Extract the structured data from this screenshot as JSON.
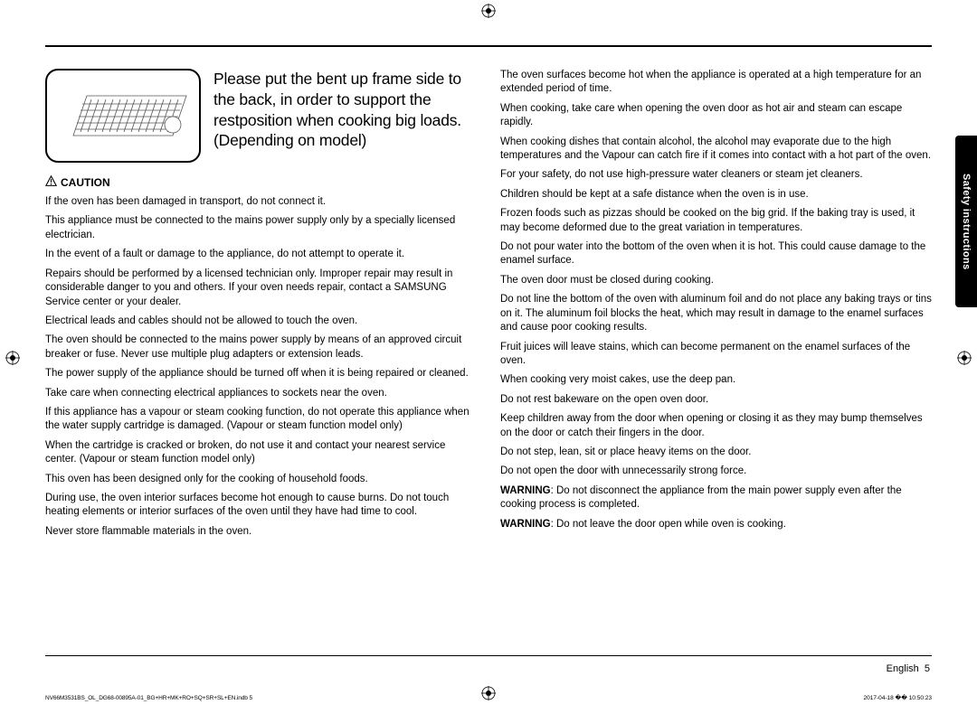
{
  "intro": "Please put the bent up frame side to the back, in order to support the restposition when cooking big loads. (Depending on model)",
  "caution_label": "CAUTION",
  "side_tab": "Safety instructions",
  "left_paras": [
    "If the oven has been damaged in transport, do not connect it.",
    "This appliance must be connected to the mains power supply only by a specially licensed electrician.",
    "In the event of a fault or damage to the appliance, do not attempt to operate it.",
    "Repairs should be performed by a licensed technician only. Improper repair may result in considerable danger to you and others. If your oven needs repair, contact a SAMSUNG Service center or your dealer.",
    "Electrical leads and cables should not be allowed to touch the oven.",
    "The oven should be connected to the mains power supply by means of an approved circuit breaker or fuse. Never use multiple plug adapters or extension leads.",
    "The power supply of the appliance should be turned off when it is being repaired or cleaned.",
    "Take care when connecting electrical appliances to sockets near the oven.",
    "If this appliance has a vapour or steam cooking function, do not operate this appliance when the water supply cartridge is damaged. (Vapour or steam function model only)",
    "When the cartridge is cracked or broken, do not use it and contact your nearest service center. (Vapour or steam function model only)",
    "This oven has been designed only for the cooking of household foods.",
    "During use, the oven interior surfaces become hot enough to cause burns. Do not touch heating elements or interior surfaces of the oven until they have had time to cool.",
    "Never store flammable materials in the oven."
  ],
  "right_paras": [
    "The oven surfaces become hot when the appliance is operated at a high temperature for an extended period of time.",
    "When cooking, take care when opening the oven door as hot air and steam can escape rapidly.",
    "When cooking dishes that contain alcohol, the alcohol may evaporate due to the high temperatures and the Vapour can catch fire if it comes into contact with a hot part of the oven.",
    "For your safety, do not use high-pressure water cleaners or steam jet cleaners.",
    "Children should be kept at a safe distance when the oven is in use.",
    "Frozen foods such as pizzas should be cooked on the big grid. If the baking tray is used, it may become deformed due to the great variation in temperatures.",
    "Do not pour water into the bottom of the oven when it is hot. This could cause damage to the enamel surface.",
    "The oven door must be closed during cooking.",
    "Do not line the bottom of the oven with aluminum foil and do not place any baking trays or tins on it. The aluminum foil blocks the heat, which may result in damage to the enamel surfaces and cause poor cooking results.",
    "Fruit juices will leave stains, which can become permanent on the enamel surfaces of the oven.",
    "When cooking very moist cakes, use the deep pan.",
    "Do not rest bakeware on the open oven door.",
    "Keep children away from the door when opening or closing it as they may bump themselves on the door or catch their fingers in the door.",
    "Do not step, lean, sit or place heavy items on the door.",
    "Do not open the door with unnecessarily strong force."
  ],
  "warnings": [
    {
      "prefix": "WARNING",
      "text": ": Do not disconnect the appliance from the main power supply even after the cooking process is completed."
    },
    {
      "prefix": "WARNING",
      "text": ": Do not leave the door open while oven is cooking."
    }
  ],
  "page_number_lang": "English",
  "page_number": "5",
  "footer_filename": "NV66M3531BS_OL_DG68-00895A-01_BG+HR+MK+RO+SQ+SR+SL+EN.indb   5",
  "footer_timestamp": "2017-04-18   �� 10:50:23",
  "colors": {
    "tab_bg": "#000000",
    "tab_text": "#ffffff",
    "text": "#000000"
  }
}
